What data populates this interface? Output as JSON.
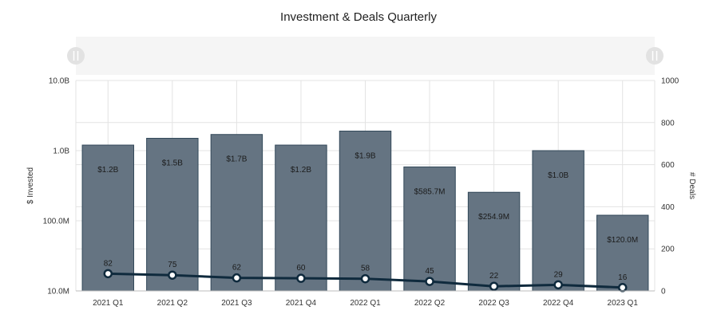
{
  "chart_data": {
    "type": "bar",
    "title": "Investment & Deals Quarterly",
    "categories": [
      "2021 Q1",
      "2021 Q2",
      "2021 Q3",
      "2021 Q4",
      "2022 Q1",
      "2022 Q2",
      "2022 Q3",
      "2022 Q4",
      "2023 Q1"
    ],
    "series": [
      {
        "name": "$ Invested",
        "type": "bar",
        "axis": "left",
        "values": [
          1200000000,
          1500000000,
          1700000000,
          1200000000,
          1900000000,
          585700000,
          254900000,
          1000000000,
          120000000
        ],
        "labels": [
          "$1.2B",
          "$1.5B",
          "$1.7B",
          "$1.2B",
          "$1.9B",
          "$585.7M",
          "$254.9M",
          "$1.0B",
          "$120.0M"
        ]
      },
      {
        "name": "# Deals",
        "type": "line",
        "axis": "right",
        "values": [
          82,
          75,
          62,
          60,
          58,
          45,
          22,
          29,
          16
        ],
        "labels": [
          "82",
          "75",
          "62",
          "60",
          "58",
          "45",
          "22",
          "29",
          "16"
        ]
      }
    ],
    "ylabel": "$ Invested",
    "y2label": "# Deals",
    "yscale": "log",
    "ylim": [
      10000000,
      10000000000
    ],
    "yticks": [
      10000000,
      100000000,
      1000000000,
      10000000000
    ],
    "yticklabels": [
      "10.0M",
      "100.0M",
      "1.0B",
      "10.0B"
    ],
    "y2lim": [
      0,
      1000
    ],
    "y2ticks": [
      0,
      200,
      400,
      600,
      800,
      1000
    ],
    "y2ticklabels": [
      "0",
      "200",
      "400",
      "600",
      "800",
      "1000"
    ],
    "grid": true,
    "colors": {
      "bar": "#657482",
      "bar_stroke": "#33495a",
      "line": "#0f2a3d",
      "marker_fill": "#ffffff",
      "zoom_bar": "#f5f5f5",
      "zoom_handle": "#e0e0e0"
    }
  }
}
